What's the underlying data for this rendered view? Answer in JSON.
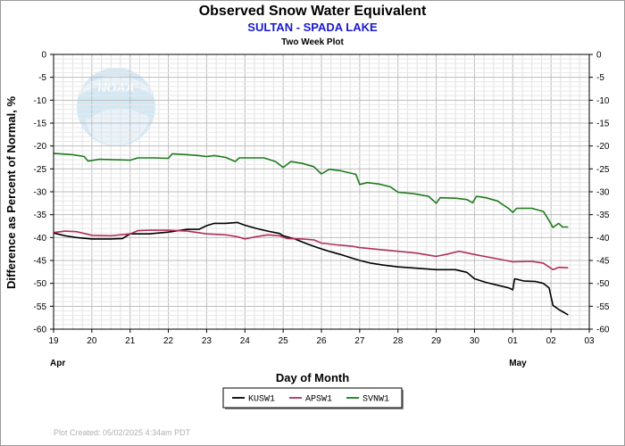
{
  "chart_data": {
    "type": "line",
    "title": "Observed Snow Water Equivalent",
    "subtitle": "SULTAN - SPADA LAKE",
    "subsubtitle": "Two Week Plot",
    "xlabel": "Day of Month",
    "ylabel": "Difference as Percent of Normal, %",
    "x_ticks": [
      "19",
      "20",
      "21",
      "22",
      "23",
      "24",
      "25",
      "26",
      "27",
      "28",
      "29",
      "30",
      "01",
      "02",
      "03"
    ],
    "month_labels": [
      {
        "label": "Apr",
        "at": "19"
      },
      {
        "label": "May",
        "at": "01"
      }
    ],
    "y_ticks": [
      "0",
      "-5",
      "-10",
      "-15",
      "-20",
      "-25",
      "-30",
      "-35",
      "-40",
      "-45",
      "-50",
      "-55",
      "-60"
    ],
    "xlim": [
      19,
      33
    ],
    "ylim": [
      -60,
      0
    ],
    "grid": true,
    "legend_position": "bottom",
    "footer": "Plot Created:  05/02/2025 4:34am PDT",
    "logo_text": "NOAA",
    "series": [
      {
        "name": "KUSW1",
        "color": "#000000",
        "points": [
          [
            19.0,
            -39.0
          ],
          [
            19.3,
            -39.6
          ],
          [
            19.6,
            -40.0
          ],
          [
            20.0,
            -40.3
          ],
          [
            20.5,
            -40.3
          ],
          [
            20.8,
            -40.2
          ],
          [
            21.0,
            -39.2
          ],
          [
            21.5,
            -39.2
          ],
          [
            22.0,
            -38.8
          ],
          [
            22.5,
            -38.2
          ],
          [
            22.8,
            -38.2
          ],
          [
            23.0,
            -37.4
          ],
          [
            23.2,
            -36.9
          ],
          [
            23.5,
            -36.9
          ],
          [
            23.8,
            -36.7
          ],
          [
            24.0,
            -37.3
          ],
          [
            24.3,
            -38.0
          ],
          [
            24.6,
            -38.6
          ],
          [
            24.9,
            -39.1
          ],
          [
            25.0,
            -39.6
          ],
          [
            25.3,
            -40.3
          ],
          [
            25.6,
            -41.3
          ],
          [
            25.9,
            -42.2
          ],
          [
            26.2,
            -43.0
          ],
          [
            26.5,
            -43.7
          ],
          [
            26.8,
            -44.5
          ],
          [
            27.0,
            -45.0
          ],
          [
            27.3,
            -45.6
          ],
          [
            27.6,
            -46.0
          ],
          [
            28.0,
            -46.4
          ],
          [
            28.5,
            -46.7
          ],
          [
            29.0,
            -47.0
          ],
          [
            29.5,
            -47.0
          ],
          [
            29.8,
            -47.6
          ],
          [
            30.0,
            -49.0
          ],
          [
            30.3,
            -49.8
          ],
          [
            30.6,
            -50.4
          ],
          [
            30.9,
            -51.0
          ],
          [
            31.0,
            -51.4
          ],
          [
            31.05,
            -49.0
          ],
          [
            31.3,
            -49.5
          ],
          [
            31.6,
            -49.6
          ],
          [
            31.8,
            -50.0
          ],
          [
            31.95,
            -51.0
          ],
          [
            32.05,
            -54.8
          ],
          [
            32.2,
            -55.7
          ],
          [
            32.35,
            -56.4
          ],
          [
            32.45,
            -56.9
          ]
        ]
      },
      {
        "name": "APSW1",
        "color": "#b0305a",
        "points": [
          [
            19.0,
            -38.9
          ],
          [
            19.3,
            -38.6
          ],
          [
            19.6,
            -38.7
          ],
          [
            20.0,
            -39.5
          ],
          [
            20.5,
            -39.6
          ],
          [
            21.0,
            -39.2
          ],
          [
            21.2,
            -38.5
          ],
          [
            21.5,
            -38.4
          ],
          [
            22.0,
            -38.4
          ],
          [
            22.5,
            -38.6
          ],
          [
            23.0,
            -39.2
          ],
          [
            23.5,
            -39.4
          ],
          [
            23.8,
            -39.8
          ],
          [
            24.0,
            -40.3
          ],
          [
            24.3,
            -39.8
          ],
          [
            24.6,
            -39.4
          ],
          [
            24.9,
            -39.6
          ],
          [
            25.1,
            -40.2
          ],
          [
            25.5,
            -40.3
          ],
          [
            25.8,
            -40.5
          ],
          [
            26.0,
            -41.2
          ],
          [
            26.4,
            -41.6
          ],
          [
            26.8,
            -41.9
          ],
          [
            27.0,
            -42.2
          ],
          [
            27.5,
            -42.6
          ],
          [
            28.0,
            -43.0
          ],
          [
            28.5,
            -43.4
          ],
          [
            29.0,
            -44.1
          ],
          [
            29.3,
            -43.6
          ],
          [
            29.6,
            -43.0
          ],
          [
            30.0,
            -43.7
          ],
          [
            30.5,
            -44.5
          ],
          [
            31.0,
            -45.3
          ],
          [
            31.5,
            -45.2
          ],
          [
            31.8,
            -45.6
          ],
          [
            32.05,
            -47.0
          ],
          [
            32.2,
            -46.5
          ],
          [
            32.45,
            -46.6
          ]
        ]
      },
      {
        "name": "SVNW1",
        "color": "#1e7a1e",
        "points": [
          [
            19.0,
            -21.6
          ],
          [
            19.5,
            -21.9
          ],
          [
            19.8,
            -22.3
          ],
          [
            19.9,
            -23.3
          ],
          [
            20.2,
            -22.9
          ],
          [
            20.6,
            -23.0
          ],
          [
            21.0,
            -23.1
          ],
          [
            21.2,
            -22.6
          ],
          [
            21.6,
            -22.6
          ],
          [
            22.0,
            -22.7
          ],
          [
            22.1,
            -21.7
          ],
          [
            22.5,
            -21.9
          ],
          [
            22.8,
            -22.1
          ],
          [
            23.0,
            -22.3
          ],
          [
            23.2,
            -22.1
          ],
          [
            23.5,
            -22.5
          ],
          [
            23.75,
            -23.4
          ],
          [
            23.85,
            -22.6
          ],
          [
            24.2,
            -22.6
          ],
          [
            24.5,
            -22.6
          ],
          [
            24.8,
            -23.4
          ],
          [
            25.0,
            -24.7
          ],
          [
            25.2,
            -23.4
          ],
          [
            25.5,
            -23.8
          ],
          [
            25.8,
            -24.5
          ],
          [
            26.0,
            -26.1
          ],
          [
            26.2,
            -25.1
          ],
          [
            26.5,
            -25.4
          ],
          [
            26.9,
            -26.2
          ],
          [
            27.0,
            -28.4
          ],
          [
            27.2,
            -28.0
          ],
          [
            27.5,
            -28.3
          ],
          [
            27.8,
            -28.9
          ],
          [
            28.0,
            -30.1
          ],
          [
            28.4,
            -30.4
          ],
          [
            28.8,
            -31.0
          ],
          [
            29.0,
            -32.5
          ],
          [
            29.1,
            -31.3
          ],
          [
            29.5,
            -31.4
          ],
          [
            29.8,
            -31.7
          ],
          [
            29.95,
            -32.4
          ],
          [
            30.05,
            -31.0
          ],
          [
            30.3,
            -31.3
          ],
          [
            30.6,
            -32.0
          ],
          [
            30.9,
            -33.7
          ],
          [
            31.0,
            -34.5
          ],
          [
            31.1,
            -33.6
          ],
          [
            31.5,
            -33.6
          ],
          [
            31.8,
            -34.3
          ],
          [
            31.95,
            -36.3
          ],
          [
            32.05,
            -37.8
          ],
          [
            32.2,
            -36.9
          ],
          [
            32.3,
            -37.7
          ],
          [
            32.45,
            -37.7
          ]
        ]
      }
    ]
  }
}
